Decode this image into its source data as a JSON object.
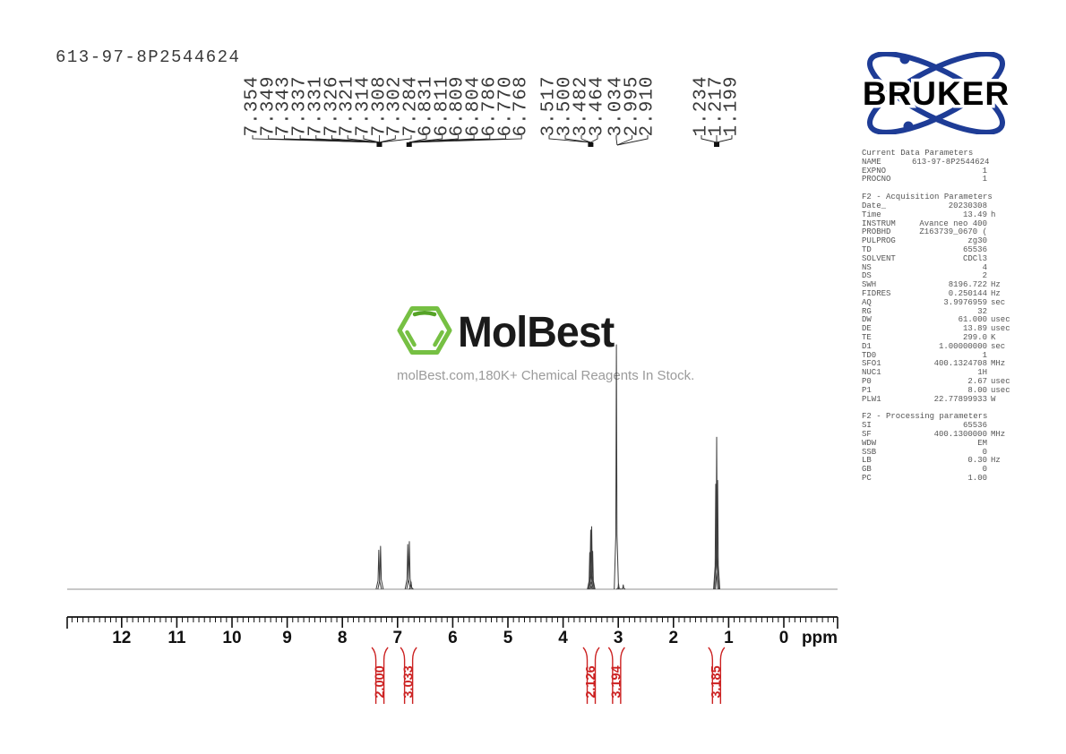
{
  "sample_id": "613-97-8P2544624",
  "watermark": {
    "brand": "MolBest",
    "tagline": "molBest.com,180K+ Chemical Reagents In Stock.",
    "hex_color": "#76c043",
    "hex_color_dark": "#55a327",
    "text_color": "#1a1a1a",
    "tagline_color": "#9b9b9b"
  },
  "bruker": {
    "brand": "BRUKER",
    "orbit_color": "#1e3c96",
    "text_color": "#000000"
  },
  "parameters": {
    "sections": [
      {
        "header": "Current Data Parameters",
        "rows": [
          [
            "NAME",
            "613-97-8P2544624",
            ""
          ],
          [
            "EXPNO",
            "1",
            ""
          ],
          [
            "PROCNO",
            "1",
            ""
          ]
        ]
      },
      {
        "header": "F2 - Acquisition Parameters",
        "rows": [
          [
            "Date_",
            "20230308",
            ""
          ],
          [
            "Time",
            "13.49",
            "h"
          ],
          [
            "INSTRUM",
            "Avance neo 400",
            ""
          ],
          [
            "PROBHD",
            "Z163739_0670 (",
            ""
          ],
          [
            "PULPROG",
            "zg30",
            ""
          ],
          [
            "TD",
            "65536",
            ""
          ],
          [
            "SOLVENT",
            "CDCl3",
            ""
          ],
          [
            "NS",
            "4",
            ""
          ],
          [
            "DS",
            "2",
            ""
          ],
          [
            "SWH",
            "8196.722",
            "Hz"
          ],
          [
            "FIDRES",
            "0.250144",
            "Hz"
          ],
          [
            "AQ",
            "3.9976959",
            "sec"
          ],
          [
            "RG",
            "32",
            ""
          ],
          [
            "DW",
            "61.000",
            "usec"
          ],
          [
            "DE",
            "13.89",
            "usec"
          ],
          [
            "TE",
            "299.0",
            "K"
          ],
          [
            "D1",
            "1.00000000",
            "sec"
          ],
          [
            "TD0",
            "1",
            ""
          ],
          [
            "SFO1",
            "400.1324708",
            "MHz"
          ],
          [
            "NUC1",
            "1H",
            ""
          ],
          [
            "P0",
            "2.67",
            "usec"
          ],
          [
            "P1",
            "8.00",
            "usec"
          ],
          [
            "PLW1",
            "22.77899933",
            "W"
          ]
        ]
      },
      {
        "header": "F2 - Processing parameters",
        "rows": [
          [
            "SI",
            "65536",
            ""
          ],
          [
            "SF",
            "400.1300000",
            "MHz"
          ],
          [
            "WDW",
            "EM",
            ""
          ],
          [
            "SSB",
            "0",
            ""
          ],
          [
            "LB",
            "0.30",
            "Hz"
          ],
          [
            "GB",
            "0",
            ""
          ],
          [
            "PC",
            "1.00",
            ""
          ]
        ]
      }
    ]
  },
  "chart_data": {
    "type": "line",
    "title": "1H NMR spectrum 613-97-8P2544624",
    "xlabel": "ppm",
    "x_axis": {
      "min": -1.0,
      "max": 13.0,
      "major_ticks": [
        12,
        11,
        10,
        9,
        8,
        7,
        6,
        5,
        4,
        3,
        2,
        1,
        0
      ],
      "minor_step": 0.1,
      "unit_label": "ppm"
    },
    "peak_label_groups": [
      {
        "labels": [
          "7.354",
          "7.349",
          "7.343",
          "7.337",
          "7.331",
          "7.326",
          "7.321",
          "7.314",
          "7.308",
          "7.302",
          "7.284"
        ],
        "target_ppm": 7.33,
        "marker": true
      },
      {
        "labels": [
          "6.831",
          "6.811",
          "6.809",
          "6.804",
          "6.786",
          "6.770",
          "6.768"
        ],
        "target_ppm": 6.79,
        "marker": true
      },
      {
        "labels": [
          "3.517",
          "3.500",
          "3.482",
          "3.464"
        ],
        "target_ppm": 3.5,
        "marker": true
      },
      {
        "labels": [
          "3.034",
          "2.995",
          "2.910"
        ],
        "target_ppm": 3.02,
        "marker": false
      },
      {
        "labels": [
          "1.234",
          "1.217",
          "1.199"
        ],
        "target_ppm": 1.217,
        "marker": true
      }
    ],
    "peaks": [
      {
        "ppm": 7.34,
        "rel": 0.16,
        "bw": 3.0
      },
      {
        "ppm": 7.308,
        "rel": 0.176,
        "bw": 3.0
      },
      {
        "ppm": 6.815,
        "rel": 0.183,
        "bw": 3.0
      },
      {
        "ppm": 6.786,
        "rel": 0.195,
        "bw": 3.0
      },
      {
        "ppm": 6.755,
        "rel": 0.03,
        "bw": 2.5
      },
      {
        "ppm": 3.517,
        "rel": 0.15,
        "bw": 2.6
      },
      {
        "ppm": 3.5,
        "rel": 0.242,
        "bw": 2.6
      },
      {
        "ppm": 3.482,
        "rel": 0.256,
        "bw": 2.6
      },
      {
        "ppm": 3.464,
        "rel": 0.155,
        "bw": 2.6
      },
      {
        "ppm": 3.034,
        "rel": 1.0,
        "bw": 2.4
      },
      {
        "ppm": 2.995,
        "rel": 0.022,
        "bw": 2.2
      },
      {
        "ppm": 2.91,
        "rel": 0.018,
        "bw": 2.2
      },
      {
        "ppm": 1.234,
        "rel": 0.43,
        "bw": 2.4
      },
      {
        "ppm": 1.217,
        "rel": 0.622,
        "bw": 2.4
      },
      {
        "ppm": 1.199,
        "rel": 0.445,
        "bw": 2.4
      }
    ],
    "integrals": [
      {
        "value": "2.000",
        "ppm": 7.32
      },
      {
        "value": "3.033",
        "ppm": 6.8
      },
      {
        "value": "2.126",
        "ppm": 3.49
      },
      {
        "value": "3.194",
        "ppm": 3.03
      },
      {
        "value": "3.185",
        "ppm": 1.22
      }
    ],
    "colors": {
      "trace": "#3c3c3c",
      "baseline": "#a6a6a6",
      "axis": "#111111",
      "integral": "#cc2222",
      "label_text": "#3a3a3a"
    }
  }
}
